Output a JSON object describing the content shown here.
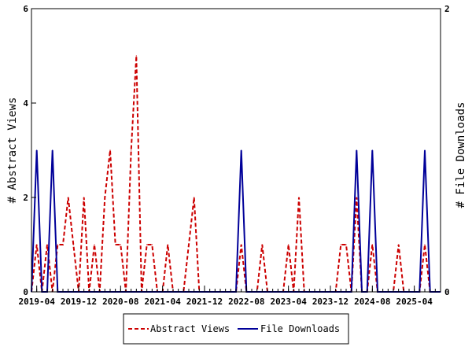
{
  "chart_data": {
    "type": "line",
    "title": "",
    "xlabel": "",
    "ylabel_left": "# Abstract Views",
    "ylabel_right": "# File Downloads",
    "ylim_left": [
      0,
      6
    ],
    "ylim_right": [
      0,
      2
    ],
    "left_ticks": [
      "0",
      "2",
      "4",
      "6"
    ],
    "right_ticks": [
      "0",
      "2"
    ],
    "x_start": "2019-03",
    "x_end": "2025-09",
    "x_ticks": [
      "2019-04",
      "2019-12",
      "2020-08",
      "2021-04",
      "2021-12",
      "2022-08",
      "2023-04",
      "2023-12",
      "2024-08",
      "2025-04"
    ],
    "grid": false,
    "legend_position": "bottom",
    "series": [
      {
        "name": "Abstract Views",
        "axis": "left",
        "color": "#cc0000",
        "style": "dashed",
        "points": [
          [
            "2019-03",
            0
          ],
          [
            "2019-04",
            1
          ],
          [
            "2019-05",
            0
          ],
          [
            "2019-06",
            1
          ],
          [
            "2019-07",
            0
          ],
          [
            "2019-08",
            1
          ],
          [
            "2019-09",
            1
          ],
          [
            "2019-10",
            2
          ],
          [
            "2019-11",
            1
          ],
          [
            "2019-12",
            0
          ],
          [
            "2020-01",
            2
          ],
          [
            "2020-02",
            0
          ],
          [
            "2020-03",
            1
          ],
          [
            "2020-04",
            0
          ],
          [
            "2020-05",
            2
          ],
          [
            "2020-06",
            3
          ],
          [
            "2020-07",
            1
          ],
          [
            "2020-08",
            1
          ],
          [
            "2020-09",
            0
          ],
          [
            "2020-10",
            3
          ],
          [
            "2020-11",
            5
          ],
          [
            "2020-12",
            0
          ],
          [
            "2021-01",
            1
          ],
          [
            "2021-02",
            1
          ],
          [
            "2021-03",
            0
          ],
          [
            "2021-04",
            0
          ],
          [
            "2021-05",
            1
          ],
          [
            "2021-06",
            0
          ],
          [
            "2021-07",
            0
          ],
          [
            "2021-08",
            0
          ],
          [
            "2021-09",
            1
          ],
          [
            "2021-10",
            2
          ],
          [
            "2021-11",
            0
          ],
          [
            "2021-12",
            0
          ],
          [
            "2022-01",
            0
          ],
          [
            "2022-02",
            0
          ],
          [
            "2022-03",
            0
          ],
          [
            "2022-04",
            0
          ],
          [
            "2022-05",
            0
          ],
          [
            "2022-06",
            0
          ],
          [
            "2022-07",
            1
          ],
          [
            "2022-08",
            0
          ],
          [
            "2022-09",
            0
          ],
          [
            "2022-10",
            0
          ],
          [
            "2022-11",
            1
          ],
          [
            "2022-12",
            0
          ],
          [
            "2023-01",
            0
          ],
          [
            "2023-02",
            0
          ],
          [
            "2023-03",
            0
          ],
          [
            "2023-04",
            1
          ],
          [
            "2023-05",
            0
          ],
          [
            "2023-06",
            2
          ],
          [
            "2023-07",
            0
          ],
          [
            "2023-08",
            0
          ],
          [
            "2023-09",
            0
          ],
          [
            "2023-10",
            0
          ],
          [
            "2023-11",
            0
          ],
          [
            "2023-12",
            0
          ],
          [
            "2024-01",
            0
          ],
          [
            "2024-02",
            1
          ],
          [
            "2024-03",
            1
          ],
          [
            "2024-04",
            0
          ],
          [
            "2024-05",
            2
          ],
          [
            "2024-06",
            0
          ],
          [
            "2024-07",
            0
          ],
          [
            "2024-08",
            1
          ],
          [
            "2024-09",
            0
          ],
          [
            "2024-10",
            0
          ],
          [
            "2024-11",
            0
          ],
          [
            "2024-12",
            0
          ],
          [
            "2025-01",
            1
          ],
          [
            "2025-02",
            0
          ],
          [
            "2025-03",
            0
          ],
          [
            "2025-04",
            0
          ],
          [
            "2025-05",
            0
          ],
          [
            "2025-06",
            1
          ],
          [
            "2025-07",
            0
          ],
          [
            "2025-08",
            0
          ],
          [
            "2025-09",
            0
          ]
        ]
      },
      {
        "name": "File Downloads",
        "axis": "right",
        "color": "#000099",
        "style": "solid",
        "points": [
          [
            "2019-03",
            0
          ],
          [
            "2019-04",
            1
          ],
          [
            "2019-05",
            0
          ],
          [
            "2019-06",
            0
          ],
          [
            "2019-07",
            1
          ],
          [
            "2019-08",
            0
          ],
          [
            "2019-09",
            0
          ],
          [
            "2019-10",
            0
          ],
          [
            "2019-11",
            0
          ],
          [
            "2019-12",
            0
          ],
          [
            "2020-01",
            0
          ],
          [
            "2020-02",
            0
          ],
          [
            "2020-03",
            0
          ],
          [
            "2020-04",
            0
          ],
          [
            "2020-05",
            0
          ],
          [
            "2020-06",
            0
          ],
          [
            "2020-07",
            0
          ],
          [
            "2020-08",
            0
          ],
          [
            "2020-09",
            0
          ],
          [
            "2020-10",
            0
          ],
          [
            "2020-11",
            0
          ],
          [
            "2020-12",
            0
          ],
          [
            "2021-01",
            0
          ],
          [
            "2021-02",
            0
          ],
          [
            "2021-03",
            0
          ],
          [
            "2021-04",
            0
          ],
          [
            "2021-05",
            0
          ],
          [
            "2021-06",
            0
          ],
          [
            "2021-07",
            0
          ],
          [
            "2021-08",
            0
          ],
          [
            "2021-09",
            0
          ],
          [
            "2021-10",
            0
          ],
          [
            "2021-11",
            0
          ],
          [
            "2021-12",
            0
          ],
          [
            "2022-01",
            0
          ],
          [
            "2022-02",
            0
          ],
          [
            "2022-03",
            0
          ],
          [
            "2022-04",
            0
          ],
          [
            "2022-05",
            0
          ],
          [
            "2022-06",
            0
          ],
          [
            "2022-07",
            1
          ],
          [
            "2022-08",
            0
          ],
          [
            "2022-09",
            0
          ],
          [
            "2022-10",
            0
          ],
          [
            "2022-11",
            0
          ],
          [
            "2022-12",
            0
          ],
          [
            "2023-01",
            0
          ],
          [
            "2023-02",
            0
          ],
          [
            "2023-03",
            0
          ],
          [
            "2023-04",
            0
          ],
          [
            "2023-05",
            0
          ],
          [
            "2023-06",
            0
          ],
          [
            "2023-07",
            0
          ],
          [
            "2023-08",
            0
          ],
          [
            "2023-09",
            0
          ],
          [
            "2023-10",
            0
          ],
          [
            "2023-11",
            0
          ],
          [
            "2023-12",
            0
          ],
          [
            "2024-01",
            0
          ],
          [
            "2024-02",
            0
          ],
          [
            "2024-03",
            0
          ],
          [
            "2024-04",
            0
          ],
          [
            "2024-05",
            1
          ],
          [
            "2024-06",
            0
          ],
          [
            "2024-07",
            0
          ],
          [
            "2024-08",
            1
          ],
          [
            "2024-09",
            0
          ],
          [
            "2024-10",
            0
          ],
          [
            "2024-11",
            0
          ],
          [
            "2024-12",
            0
          ],
          [
            "2025-01",
            0
          ],
          [
            "2025-02",
            0
          ],
          [
            "2025-03",
            0
          ],
          [
            "2025-04",
            0
          ],
          [
            "2025-05",
            0
          ],
          [
            "2025-06",
            1
          ],
          [
            "2025-07",
            0
          ],
          [
            "2025-08",
            0
          ],
          [
            "2025-09",
            0
          ]
        ]
      }
    ]
  }
}
